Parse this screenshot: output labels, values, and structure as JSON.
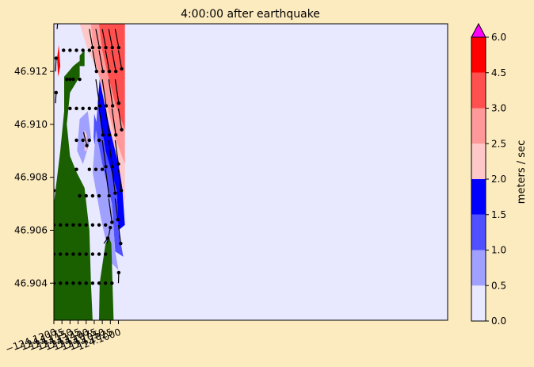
{
  "chart_data": {
    "type": "heatmap",
    "title": "4:00:00 after earthquake",
    "xlabel": "",
    "ylabel": "",
    "xlim": [
      -124.12,
      -123.998
    ],
    "ylim": [
      46.9026,
      46.9138
    ],
    "x_ticks": [
      -124.12,
      -124.1175,
      -124.115,
      -124.1125,
      -124.11,
      -124.1075,
      -124.105,
      -124.1025,
      -124.1
    ],
    "x_tick_labels": [
      "−124.1200",
      "−124.1175",
      "−124.1150",
      "−124.1125",
      "−124.1100",
      "−124.1075",
      "−124.1050",
      "−124.1025",
      "−124.1000"
    ],
    "y_ticks": [
      46.904,
      46.906,
      46.908,
      46.91,
      46.912
    ],
    "y_tick_labels": [
      "46.904",
      "46.906",
      "46.908",
      "46.910",
      "46.912"
    ],
    "grid": false,
    "colorbar": {
      "label": "meters / sec",
      "levels": [
        0.0,
        0.5,
        1.0,
        1.5,
        2.0,
        2.5,
        3.0,
        4.5,
        6.0
      ],
      "tick_labels": [
        "0.0",
        "0.5",
        "1.0",
        "1.5",
        "2.0",
        "2.5",
        "3.0",
        "4.5",
        "6.0"
      ],
      "colors": [
        "#e8e8ff",
        "#a0a0ff",
        "#5050ff",
        "#0000ff",
        "#ffc8c8",
        "#ff9898",
        "#ff5050",
        "#ff0000"
      ],
      "extend_color": "#ff00ff"
    },
    "land_color": "#1a6000",
    "region_polygons": [
      {
        "level_index": 0,
        "points": [
          [
            -124.112,
            46.9128
          ],
          [
            -124.105,
            46.9128
          ],
          [
            -124.105,
            46.909
          ],
          [
            -124.1005,
            46.9072
          ],
          [
            -124.1005,
            46.906
          ],
          [
            -124.1032,
            46.906
          ],
          [
            -124.1052,
            46.9052
          ],
          [
            -124.11,
            46.908
          ],
          [
            -124.115,
            46.908
          ],
          [
            -124.117,
            46.91
          ],
          [
            -124.117,
            46.9118
          ]
        ]
      },
      {
        "level_index": 1,
        "points": [
          [
            -124.112,
            46.9102
          ],
          [
            -124.1095,
            46.9105
          ],
          [
            -124.1085,
            46.9095
          ],
          [
            -124.111,
            46.9085
          ],
          [
            -124.1128,
            46.909
          ]
        ]
      },
      {
        "level_index": 2,
        "points": [
          [
            -124.1075,
            46.9104
          ],
          [
            -124.1066,
            46.91
          ],
          [
            -124.1061,
            46.9092
          ],
          [
            -124.1068,
            46.9088
          ],
          [
            -124.1077,
            46.9095
          ]
        ]
      },
      {
        "level_index": 4,
        "points": [
          [
            -124.1105,
            46.9098
          ],
          [
            -124.1098,
            46.9096
          ],
          [
            -124.1098,
            46.909
          ],
          [
            -124.1105,
            46.909
          ]
        ]
      },
      {
        "level_index": 3,
        "points": [
          [
            -124.1055,
            46.9122
          ],
          [
            -124.102,
            46.9098
          ],
          [
            -124.099,
            46.908
          ],
          [
            -124.098,
            46.9062
          ],
          [
            -124.1,
            46.906
          ],
          [
            -124.1005,
            46.9075
          ],
          [
            -124.104,
            46.909
          ],
          [
            -124.1064,
            46.9108
          ]
        ]
      },
      {
        "level_index": 2,
        "points": [
          [
            -124.1064,
            46.9108
          ],
          [
            -124.104,
            46.909
          ],
          [
            -124.1005,
            46.9075
          ],
          [
            -124.1,
            46.906
          ],
          [
            -124.0985,
            46.905
          ],
          [
            -124.101,
            46.9052
          ],
          [
            -124.102,
            46.907
          ],
          [
            -124.105,
            46.9085
          ],
          [
            -124.107,
            46.9098
          ]
        ]
      },
      {
        "level_index": 1,
        "points": [
          [
            -124.107,
            46.9098
          ],
          [
            -124.105,
            46.9085
          ],
          [
            -124.102,
            46.907
          ],
          [
            -124.101,
            46.9052
          ],
          [
            -124.1,
            46.9045
          ],
          [
            -124.1025,
            46.9048
          ],
          [
            -124.1055,
            46.9065
          ],
          [
            -124.108,
            46.9082
          ]
        ]
      },
      {
        "level_index": 4,
        "points": [
          [
            -124.112,
            46.9138
          ],
          [
            -124.098,
            46.9138
          ],
          [
            -124.098,
            46.907
          ],
          [
            -124.1,
            46.9085
          ],
          [
            -124.103,
            46.91
          ],
          [
            -124.106,
            46.9118
          ],
          [
            -124.11,
            46.913
          ]
        ]
      },
      {
        "level_index": 5,
        "points": [
          [
            -124.1085,
            46.9138
          ],
          [
            -124.098,
            46.9138
          ],
          [
            -124.098,
            46.9085
          ],
          [
            -124.101,
            46.9095
          ],
          [
            -124.1045,
            46.9112
          ],
          [
            -124.1075,
            46.9125
          ]
        ]
      },
      {
        "level_index": 6,
        "points": [
          [
            -124.106,
            46.9138
          ],
          [
            -124.098,
            46.9138
          ],
          [
            -124.098,
            46.9098
          ],
          [
            -124.101,
            46.9108
          ],
          [
            -124.1035,
            46.912
          ],
          [
            -124.105,
            46.9128
          ]
        ]
      },
      {
        "level_index": 7,
        "points": [
          [
            -124.119,
            46.9125
          ],
          [
            -124.1187,
            46.9118
          ],
          [
            -124.118,
            46.9122
          ],
          [
            -124.1185,
            46.913
          ]
        ]
      }
    ],
    "land_polygons": [
      {
        "points": [
          [
            -124.12,
            46.907
          ],
          [
            -124.118,
            46.909
          ],
          [
            -124.1168,
            46.9105
          ],
          [
            -124.1168,
            46.9118
          ],
          [
            -124.114,
            46.9122
          ],
          [
            -124.112,
            46.9124
          ],
          [
            -124.112,
            46.9118
          ],
          [
            -124.115,
            46.9112
          ],
          [
            -124.116,
            46.91
          ],
          [
            -124.115,
            46.9088
          ],
          [
            -124.113,
            46.9082
          ],
          [
            -124.1105,
            46.9076
          ],
          [
            -124.109,
            46.906
          ],
          [
            -124.1085,
            46.904
          ],
          [
            -124.108,
            46.9026
          ],
          [
            -124.12,
            46.9026
          ]
        ]
      },
      {
        "points": [
          [
            -124.112,
            46.9126
          ],
          [
            -124.1105,
            46.9128
          ],
          [
            -124.1105,
            46.9122
          ],
          [
            -124.112,
            46.9122
          ]
        ]
      },
      {
        "points": [
          [
            -124.1058,
            46.904
          ],
          [
            -124.104,
            46.9055
          ],
          [
            -124.1028,
            46.9057
          ],
          [
            -124.1022,
            46.9055
          ],
          [
            -124.1015,
            46.9026
          ],
          [
            -124.106,
            46.9026
          ]
        ]
      },
      {
        "points": [
          [
            -124.12,
            46.9043
          ],
          [
            -124.114,
            46.9043
          ],
          [
            -124.114,
            46.9037
          ],
          [
            -124.12,
            46.9037
          ]
        ]
      }
    ],
    "quiver": [
      {
        "x": -124.107,
        "y": 46.9136,
        "dx": 0.0011,
        "dy": -0.0007
      },
      {
        "x": -124.105,
        "y": 46.9136,
        "dx": 0.0011,
        "dy": -0.0007
      },
      {
        "x": -124.103,
        "y": 46.9136,
        "dx": 0.0011,
        "dy": -0.0007
      },
      {
        "x": -124.101,
        "y": 46.9136,
        "dx": 0.0011,
        "dy": -0.0007
      },
      {
        "x": -124.109,
        "y": 46.9136,
        "dx": 0.001,
        "dy": -0.0007
      },
      {
        "x": -124.108,
        "y": 46.9128,
        "dx": 0.0012,
        "dy": -0.0008
      },
      {
        "x": -124.106,
        "y": 46.9128,
        "dx": 0.0012,
        "dy": -0.0008
      },
      {
        "x": -124.104,
        "y": 46.9128,
        "dx": 0.0012,
        "dy": -0.0008
      },
      {
        "x": -124.102,
        "y": 46.9128,
        "dx": 0.0012,
        "dy": -0.0008
      },
      {
        "x": -124.1,
        "y": 46.9128,
        "dx": 0.001,
        "dy": -0.0007
      },
      {
        "x": -124.107,
        "y": 46.9117,
        "dx": 0.0012,
        "dy": -0.001
      },
      {
        "x": -124.105,
        "y": 46.9117,
        "dx": 0.0012,
        "dy": -0.001
      },
      {
        "x": -124.103,
        "y": 46.9117,
        "dx": 0.0012,
        "dy": -0.001
      },
      {
        "x": -124.101,
        "y": 46.9117,
        "dx": 0.0011,
        "dy": -0.0009
      },
      {
        "x": -124.106,
        "y": 46.9106,
        "dx": 0.0012,
        "dy": -0.001
      },
      {
        "x": -124.104,
        "y": 46.9106,
        "dx": 0.0012,
        "dy": -0.001
      },
      {
        "x": -124.102,
        "y": 46.9106,
        "dx": 0.0012,
        "dy": -0.001
      },
      {
        "x": -124.1,
        "y": 46.9106,
        "dx": 0.001,
        "dy": -0.0008
      },
      {
        "x": -124.105,
        "y": 46.9094,
        "dx": 0.0011,
        "dy": -0.001
      },
      {
        "x": -124.103,
        "y": 46.9094,
        "dx": 0.0011,
        "dy": -0.001
      },
      {
        "x": -124.101,
        "y": 46.9094,
        "dx": 0.001,
        "dy": -0.0009
      },
      {
        "x": -124.104,
        "y": 46.9083,
        "dx": 0.0011,
        "dy": -0.001
      },
      {
        "x": -124.102,
        "y": 46.9083,
        "dx": 0.001,
        "dy": -0.0009
      },
      {
        "x": -124.1,
        "y": 46.9083,
        "dx": 0.0009,
        "dy": -0.0008
      },
      {
        "x": -124.103,
        "y": 46.9072,
        "dx": 0.001,
        "dy": -0.0009
      },
      {
        "x": -124.101,
        "y": 46.9072,
        "dx": 0.0008,
        "dy": -0.0008
      },
      {
        "x": -124.1,
        "y": 46.9062,
        "dx": 0.0007,
        "dy": -0.0007
      },
      {
        "x": -124.119,
        "y": 46.9136,
        "dx": 0.0003,
        "dy": 0.0004
      },
      {
        "x": -124.1195,
        "y": 46.912,
        "dx": 0.0002,
        "dy": 0.0005
      },
      {
        "x": -124.1195,
        "y": 46.9108,
        "dx": 0.0002,
        "dy": 0.0004
      },
      {
        "x": -124.1045,
        "y": 46.9055,
        "dx": 0.0012,
        "dy": 0.0002
      },
      {
        "x": -124.1035,
        "y": 46.9055,
        "dx": 0.001,
        "dy": 0.0006
      },
      {
        "x": -124.1108,
        "y": 46.9097,
        "dx": 0.001,
        "dy": -0.0005
      },
      {
        "x": -124.1,
        "y": 46.904,
        "dx": 0.0001,
        "dy": 0.0004
      }
    ],
    "dots": [
      [
        -124.12,
        46.9075
      ],
      [
        -124.12,
        46.9062
      ],
      [
        -124.12,
        46.9051
      ],
      [
        -124.12,
        46.904
      ],
      [
        -124.118,
        46.9062
      ],
      [
        -124.118,
        46.9051
      ],
      [
        -124.118,
        46.904
      ],
      [
        -124.116,
        46.9062
      ],
      [
        -124.116,
        46.9051
      ],
      [
        -124.116,
        46.904
      ],
      [
        -124.114,
        46.9062
      ],
      [
        -124.114,
        46.9051
      ],
      [
        -124.114,
        46.904
      ],
      [
        -124.112,
        46.9073
      ],
      [
        -124.112,
        46.9062
      ],
      [
        -124.112,
        46.9051
      ],
      [
        -124.112,
        46.904
      ],
      [
        -124.11,
        46.9073
      ],
      [
        -124.11,
        46.9062
      ],
      [
        -124.11,
        46.9051
      ],
      [
        -124.11,
        46.904
      ],
      [
        -124.108,
        46.9073
      ],
      [
        -124.108,
        46.9062
      ],
      [
        -124.108,
        46.9051
      ],
      [
        -124.108,
        46.904
      ],
      [
        -124.106,
        46.9073
      ],
      [
        -124.106,
        46.9062
      ],
      [
        -124.106,
        46.9051
      ],
      [
        -124.106,
        46.904
      ],
      [
        -124.104,
        46.9062
      ],
      [
        -124.104,
        46.9051
      ],
      [
        -124.104,
        46.904
      ],
      [
        -124.102,
        46.904
      ],
      [
        -124.113,
        46.9094
      ],
      [
        -124.113,
        46.9083
      ],
      [
        -124.111,
        46.9094
      ],
      [
        -124.109,
        46.9094
      ],
      [
        -124.109,
        46.9083
      ],
      [
        -124.107,
        46.9083
      ],
      [
        -124.105,
        46.9083
      ],
      [
        -124.106,
        46.9094
      ],
      [
        -124.115,
        46.9117
      ],
      [
        -124.115,
        46.9106
      ],
      [
        -124.113,
        46.9106
      ],
      [
        -124.111,
        46.9106
      ],
      [
        -124.109,
        46.9106
      ],
      [
        -124.107,
        46.9106
      ],
      [
        -124.117,
        46.9128
      ],
      [
        -124.115,
        46.9128
      ],
      [
        -124.113,
        46.9128
      ],
      [
        -124.111,
        46.9128
      ],
      [
        -124.109,
        46.9128
      ],
      [
        -124.116,
        46.9117
      ],
      [
        -124.114,
        46.9117
      ],
      [
        -124.112,
        46.9117
      ]
    ]
  }
}
